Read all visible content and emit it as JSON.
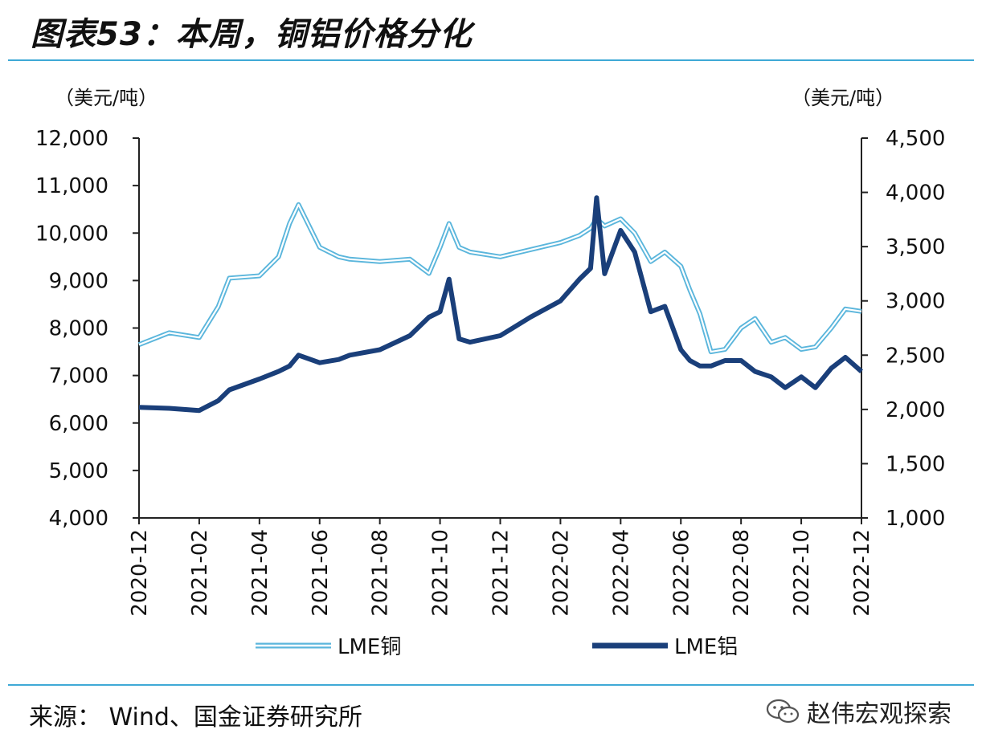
{
  "header": {
    "title": "图表53：本周，铜铝价格分化"
  },
  "footer": {
    "source": "来源： Wind、国金证券研究所",
    "watermark": "赵伟宏观探索",
    "watermark_icon": "wechat-icon"
  },
  "colors": {
    "copper": "#5bb6dc",
    "aluminum": "#1a3f7a",
    "rule": "#3fa9d6"
  },
  "chart_data": {
    "type": "line",
    "left_unit": "（美元/吨）",
    "right_unit": "（美元/吨）",
    "y_left": {
      "min": 4000,
      "max": 12000,
      "ticks": [
        4000,
        5000,
        6000,
        7000,
        8000,
        9000,
        10000,
        11000,
        12000
      ],
      "tick_labels": [
        "4,000",
        "5,000",
        "6,000",
        "7,000",
        "8,000",
        "9,000",
        "10,000",
        "11,000",
        "12,000"
      ]
    },
    "y_right": {
      "min": 1000,
      "max": 4500,
      "ticks": [
        1000,
        1500,
        2000,
        2500,
        3000,
        3500,
        4000,
        4500
      ],
      "tick_labels": [
        "1,000",
        "1,500",
        "2,000",
        "2,500",
        "3,000",
        "3,500",
        "4,000",
        "4,500"
      ]
    },
    "x_ticks": [
      "2020-12",
      "2021-02",
      "2021-04",
      "2021-06",
      "2021-08",
      "2021-10",
      "2021-12",
      "2022-02",
      "2022-04",
      "2022-06",
      "2022-08",
      "2022-10",
      "2022-12"
    ],
    "legend_position": "bottom",
    "series": [
      {
        "name": "LME铜",
        "axis": "left",
        "x": [
          "2020-12",
          "2021-01",
          "2021-02",
          "2021-02-20",
          "2021-03",
          "2021-04",
          "2021-04-20",
          "2021-05",
          "2021-05-10",
          "2021-06",
          "2021-06-20",
          "2021-07",
          "2021-08",
          "2021-09",
          "2021-09-20",
          "2021-10",
          "2021-10-10",
          "2021-10-20",
          "2021-11",
          "2021-12",
          "2022-01",
          "2022-02",
          "2022-02-20",
          "2022-03",
          "2022-03-07",
          "2022-03-15",
          "2022-04",
          "2022-04-15",
          "2022-05",
          "2022-05-15",
          "2022-06",
          "2022-06-10",
          "2022-06-20",
          "2022-07",
          "2022-07-15",
          "2022-08",
          "2022-08-15",
          "2022-09",
          "2022-09-15",
          "2022-10",
          "2022-10-15",
          "2022-11",
          "2022-11-15",
          "2022-12"
        ],
        "y": [
          7650,
          7900,
          7800,
          8450,
          9050,
          9100,
          9500,
          10200,
          10600,
          9700,
          9500,
          9450,
          9400,
          9450,
          9150,
          9700,
          10200,
          9700,
          9600,
          9500,
          9650,
          9800,
          9950,
          10100,
          10300,
          10150,
          10300,
          10000,
          9400,
          9600,
          9300,
          8800,
          8300,
          7500,
          7550,
          8000,
          8200,
          7700,
          7800,
          7550,
          7600,
          8000,
          8400,
          8350
        ]
      },
      {
        "name": "LME铝",
        "axis": "right",
        "x": [
          "2020-12",
          "2021-01",
          "2021-02",
          "2021-02-20",
          "2021-03",
          "2021-04",
          "2021-04-20",
          "2021-05",
          "2021-05-10",
          "2021-06",
          "2021-06-20",
          "2021-07",
          "2021-08",
          "2021-09",
          "2021-09-20",
          "2021-10",
          "2021-10-10",
          "2021-10-20",
          "2021-11",
          "2021-12",
          "2022-01",
          "2022-02",
          "2022-02-20",
          "2022-03",
          "2022-03-07",
          "2022-03-15",
          "2022-04",
          "2022-04-15",
          "2022-05",
          "2022-05-15",
          "2022-06",
          "2022-06-10",
          "2022-06-20",
          "2022-07",
          "2022-07-15",
          "2022-08",
          "2022-08-15",
          "2022-09",
          "2022-09-15",
          "2022-10",
          "2022-10-15",
          "2022-11",
          "2022-11-15",
          "2022-12"
        ],
        "y": [
          2020,
          2010,
          1990,
          2080,
          2180,
          2280,
          2350,
          2400,
          2500,
          2430,
          2460,
          2500,
          2550,
          2680,
          2850,
          2900,
          3200,
          2650,
          2620,
          2680,
          2850,
          3000,
          3200,
          3300,
          3950,
          3250,
          3650,
          3450,
          2900,
          2950,
          2550,
          2450,
          2400,
          2400,
          2450,
          2450,
          2350,
          2300,
          2200,
          2300,
          2200,
          2380,
          2480,
          2350
        ]
      }
    ]
  }
}
